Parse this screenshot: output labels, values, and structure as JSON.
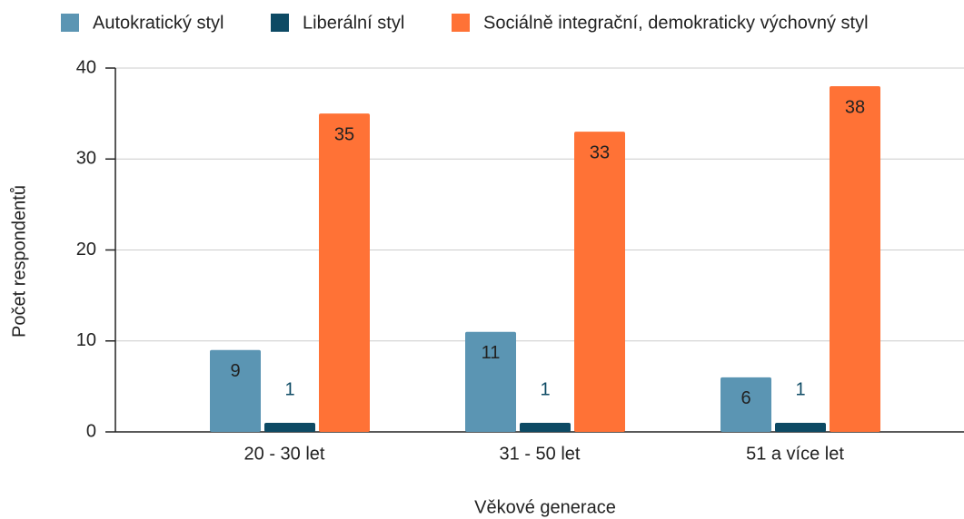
{
  "chart_data": {
    "type": "bar",
    "categories": [
      "20 - 30 let",
      "31 - 50 let",
      "51 a více let"
    ],
    "series": [
      {
        "name": "Autokratický styl",
        "color": "#5b95b3",
        "values": [
          9,
          11,
          6
        ]
      },
      {
        "name": "Liberální styl",
        "color": "#0d4a64",
        "values": [
          1,
          1,
          1
        ]
      },
      {
        "name": "Sociálně integrační, demokraticky výchovný styl",
        "color": "#ff7236",
        "values": [
          35,
          33,
          38
        ]
      }
    ],
    "ylim": [
      0,
      40
    ],
    "yticks": [
      0,
      10,
      20,
      30,
      40
    ],
    "grid": true,
    "xlabel": "Věkové generace",
    "ylabel": "Počet respondentů",
    "legend": "top"
  }
}
